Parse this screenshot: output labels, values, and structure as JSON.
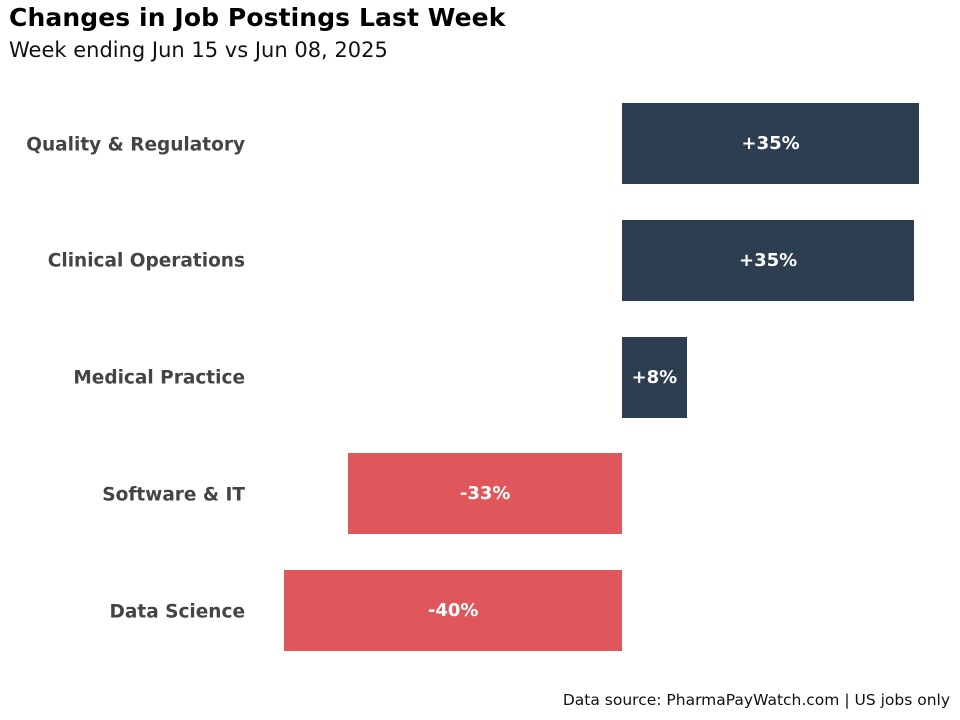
{
  "title": "Changes in Job Postings Last Week",
  "subtitle": "Week ending Jun 15 vs Jun 08, 2025",
  "footer": "Data source: PharmaPayWatch.com | US jobs only",
  "colors": {
    "positive": "#2c3e50",
    "negative": "#e0575b",
    "label": "#444444"
  },
  "bars": [
    {
      "label": "Quality & Regulatory",
      "value": 35.3,
      "display": "+35%"
    },
    {
      "label": "Clinical Operations",
      "value": 34.7,
      "display": "+35%"
    },
    {
      "label": "Medical Practice",
      "value": 7.7,
      "display": "+8%"
    },
    {
      "label": "Software & IT",
      "value": -32.5,
      "display": "-33%"
    },
    {
      "label": "Data Science",
      "value": -40.1,
      "display": "-40%"
    }
  ],
  "chart_data": {
    "type": "bar",
    "orientation": "horizontal",
    "title": "Changes in Job Postings Last Week",
    "subtitle": "Week ending Jun 15 vs Jun 08, 2025",
    "categories": [
      "Quality & Regulatory",
      "Clinical Operations",
      "Medical Practice",
      "Software & IT",
      "Data Science"
    ],
    "values": [
      35,
      35,
      8,
      -33,
      -40
    ],
    "data_labels": [
      "+35%",
      "+35%",
      "+8%",
      "-33%",
      "-40%"
    ],
    "xlabel": "",
    "ylabel": "",
    "unit": "%",
    "grid": false,
    "legend": null,
    "annotations": [
      "Data source: PharmaPayWatch.com | US jobs only"
    ]
  }
}
